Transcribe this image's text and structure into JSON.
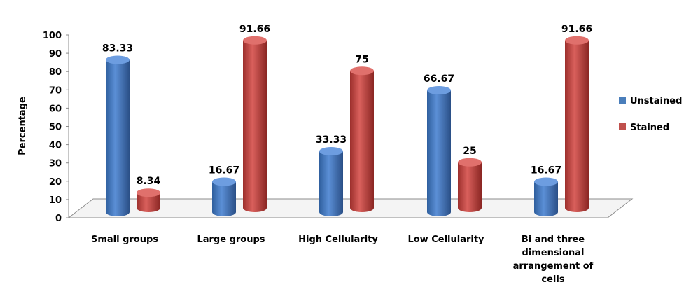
{
  "chart_data": {
    "type": "bar",
    "title": "",
    "xlabel": "",
    "ylabel": "Percentage",
    "ylim": [
      0,
      100
    ],
    "yticks": [
      "0",
      "10",
      "20",
      "30",
      "40",
      "50",
      "60",
      "70",
      "80",
      "90",
      "100"
    ],
    "categories": [
      [
        "Small groups"
      ],
      [
        "Large groups"
      ],
      [
        "High Cellularity"
      ],
      [
        "Low Cellularity"
      ],
      [
        "Bi and three",
        "dimensional",
        "arrangement of",
        "cells"
      ]
    ],
    "series": [
      {
        "name": "Unstained",
        "color": "#4a7ebb",
        "values": [
          83.33,
          16.67,
          33.33,
          66.67,
          16.67
        ],
        "labels": [
          "83.33",
          "16.67",
          "33.33",
          "66.67",
          "16.67"
        ]
      },
      {
        "name": "Stained",
        "color": "#c0504d",
        "values": [
          8.34,
          91.66,
          75,
          25,
          91.66
        ],
        "labels": "8.34|91.66|75|25|91.66"
      }
    ],
    "legend_position": "right",
    "grid": false,
    "style": "3d-cylinder"
  }
}
